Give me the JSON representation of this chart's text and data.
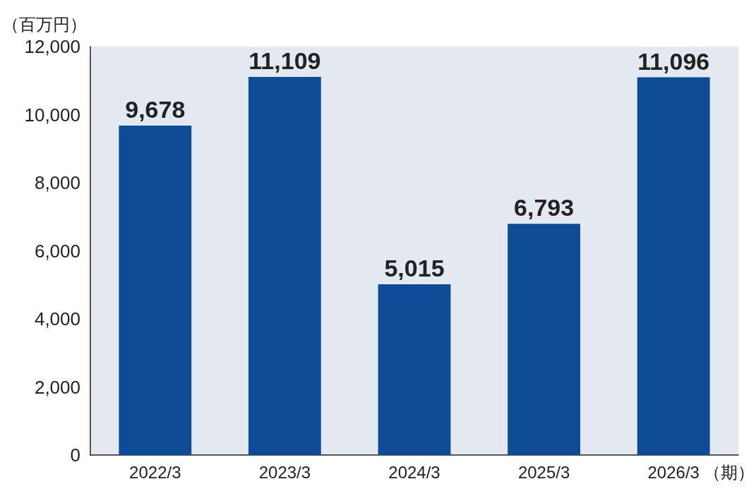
{
  "chart_data": {
    "type": "bar",
    "ylabel": "（百万円）",
    "xlabel": "（期）",
    "categories": [
      "2022/3",
      "2023/3",
      "2024/3",
      "2025/3",
      "2026/3"
    ],
    "values": [
      9678,
      11109,
      5015,
      6793,
      11096
    ],
    "value_labels": [
      "9,678",
      "11,109",
      "5,015",
      "6,793",
      "11,096"
    ],
    "color": "#0f4c97",
    "ylim": [
      0,
      12000
    ],
    "yticks": [
      {
        "value": 0,
        "label": "0"
      },
      {
        "value": 2000,
        "label": "2,000"
      },
      {
        "value": 4000,
        "label": "4,000"
      },
      {
        "value": 6000,
        "label": "6,000"
      },
      {
        "value": 8000,
        "label": "8,000"
      },
      {
        "value": 10000,
        "label": "10,000"
      },
      {
        "value": 12000,
        "label": "12,000"
      }
    ],
    "grid": false
  }
}
